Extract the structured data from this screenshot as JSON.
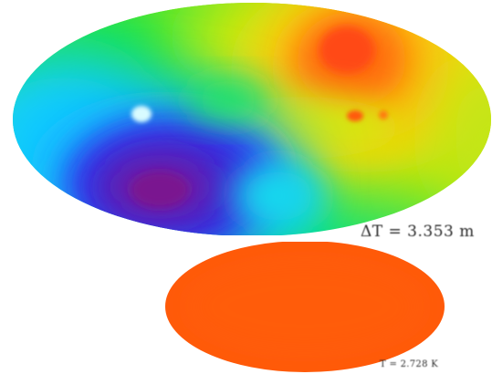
{
  "labels": {
    "dipole": "ΔT = 3.353 m",
    "monopole": "T = 2.728 K"
  },
  "maps": {
    "dipole_map": {
      "projection": "mollweide",
      "colormap": [
        "#6b1fa0",
        "#2a2ad8",
        "#18c9ff",
        "#11e36b",
        "#7be81a",
        "#f2de06",
        "#ff9f0a",
        "#ff4d14"
      ],
      "features": [
        "cold-lobe",
        "hot-lobe",
        "cold-spot",
        "hot-spot-pair"
      ]
    },
    "monopole_map": {
      "projection": "mollweide",
      "fill_color": "#ff5a0a"
    }
  }
}
